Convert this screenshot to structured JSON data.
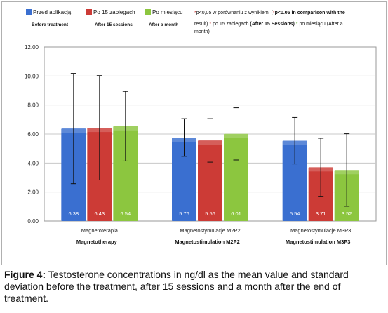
{
  "chart_data": {
    "type": "bar",
    "categories": [
      "Magnetoterapia",
      "Magnetostymulacje M2P2",
      "Magnetostymulacje M3P3"
    ],
    "category_sublabels": [
      "Magnetotherapy",
      "Magnetostimulation M2P2",
      "Magnetostimulation M3P3"
    ],
    "series": [
      {
        "name": "Przed aplikacją",
        "sublabel": "Before treatment",
        "color": "#3a6fd0",
        "values": [
          6.38,
          5.76,
          5.54
        ],
        "errors": [
          3.8,
          1.3,
          1.6
        ]
      },
      {
        "name": "Po 15 zabiegach",
        "sublabel": "After 15 sessions",
        "color": "#cc3b36",
        "values": [
          6.43,
          5.56,
          3.71
        ],
        "errors": [
          3.6,
          1.5,
          2.0
        ]
      },
      {
        "name": "Po miesiącu",
        "sublabel": "After a month",
        "color": "#8cc63f",
        "values": [
          6.54,
          6.01,
          3.52
        ],
        "errors": [
          2.4,
          1.8,
          2.5
        ]
      }
    ],
    "value_labels": [
      [
        "6.38",
        "5.76",
        "5.54"
      ],
      [
        "6.43",
        "5.56",
        "3.71"
      ],
      [
        "6.54",
        "6.01",
        "3.52"
      ]
    ],
    "y_ticks": [
      "0.00",
      "2.00",
      "4.00",
      "6.00",
      "8.00",
      "10.00",
      "12.00"
    ],
    "ylim": [
      0,
      12
    ],
    "grid": true,
    "legend_position": "top",
    "legend_note_line1_a": "p<0,05  w porównaniu z wynikiem: (",
    "legend_note_line1_b": "p<0.05 in comparison with the",
    "legend_note_line2_a": "result) ",
    "legend_note_line2_b": " po 15 zabiegach ",
    "legend_note_line2_c": "(After 15 Sessions) ",
    "legend_note_line2_d": " po miesiącu (After a",
    "legend_note_line3": "month)",
    "asterisk": "*"
  },
  "caption": {
    "label": "Figure 4:",
    "text": " Testosterone concentrations in ng/dl as the mean value and standard deviation before the treatment, after 15 sessions and a month after the end of treatment."
  }
}
